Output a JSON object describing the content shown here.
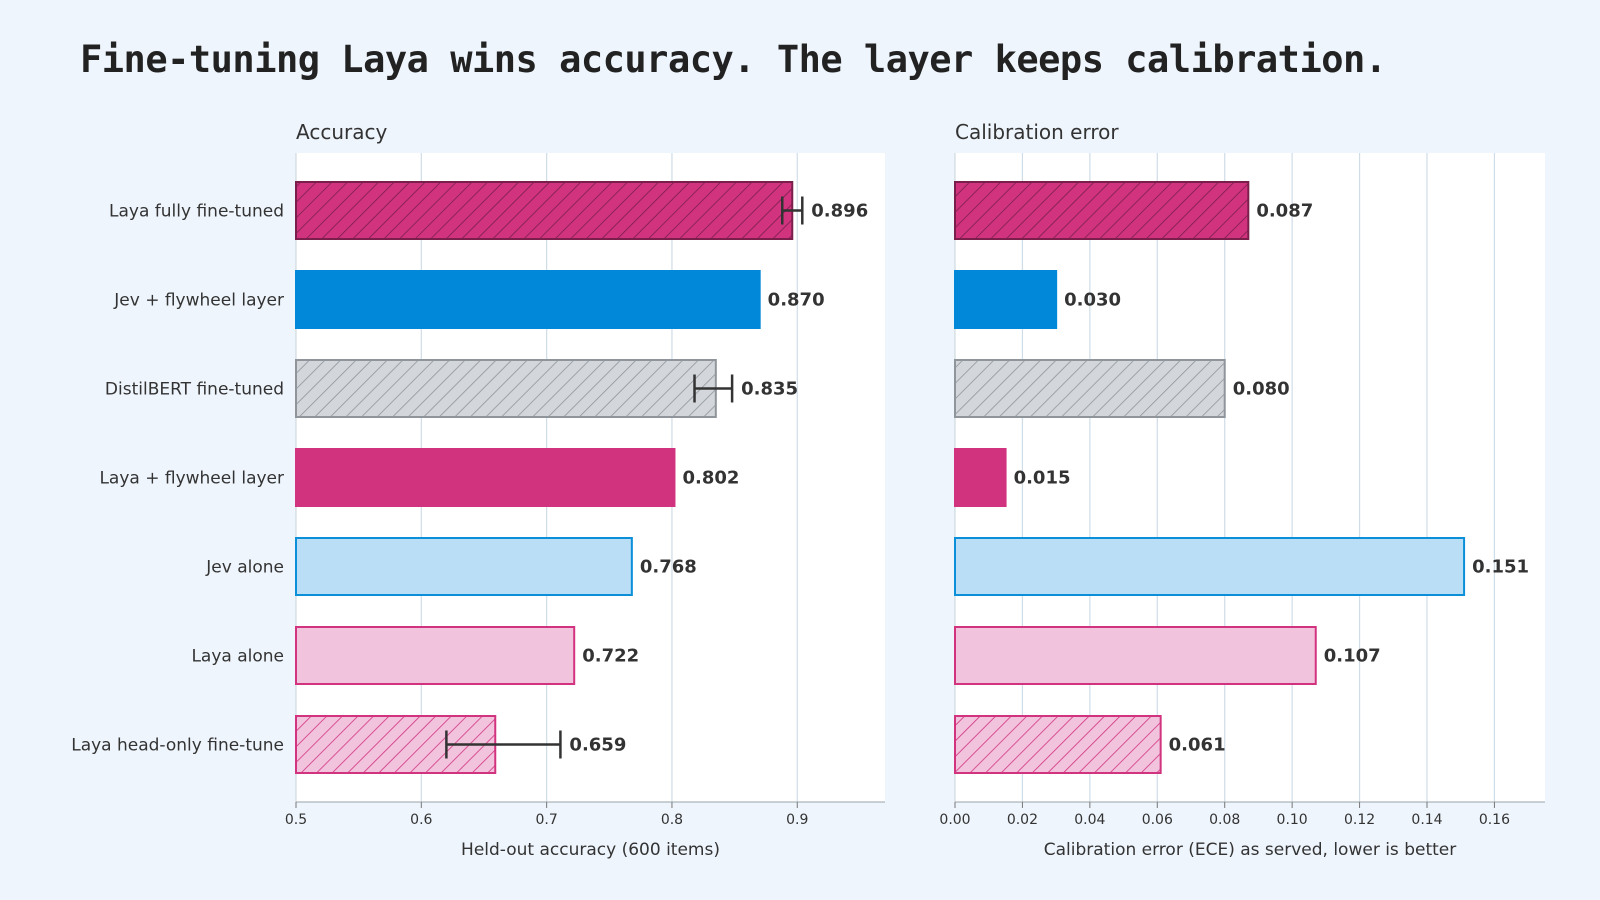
{
  "title": "Fine-tuning Laya wins accuracy. The layer keeps calibration.",
  "categories": [
    "Laya fully fine-tuned",
    "Jev + flywheel layer",
    "DistilBERT fine-tuned",
    "Laya + flywheel layer",
    "Jev alone",
    "Laya alone",
    "Laya head-only fine-tune"
  ],
  "bar_styles": [
    {
      "fill": "#d1337f",
      "stroke": "#7a1f4c",
      "hatch": true,
      "hatch_color": "#7a1f4c"
    },
    {
      "fill": "#0288d8",
      "stroke": "#0288d8",
      "hatch": false
    },
    {
      "fill": "#d3d7db",
      "stroke": "#8f959b",
      "hatch": true,
      "hatch_color": "#8f959b"
    },
    {
      "fill": "#d1337f",
      "stroke": "#d1337f",
      "hatch": false
    },
    {
      "fill": "#b9def6",
      "stroke": "#0a8fd8",
      "hatch": false
    },
    {
      "fill": "#f2c3dd",
      "stroke": "#d1337f",
      "hatch": false
    },
    {
      "fill": "#f2c3dd",
      "stroke": "#d1337f",
      "hatch": true,
      "hatch_color": "#d1337f"
    }
  ],
  "chart_data": [
    {
      "type": "bar",
      "orientation": "horizontal",
      "title": "Accuracy",
      "xlabel": "Held-out accuracy (600 items)",
      "categories": [
        "Laya fully fine-tuned",
        "Jev + flywheel layer",
        "DistilBERT fine-tuned",
        "Laya + flywheel layer",
        "Jev alone",
        "Laya alone",
        "Laya head-only fine-tune"
      ],
      "values": [
        0.896,
        0.87,
        0.835,
        0.802,
        0.768,
        0.722,
        0.659
      ],
      "value_labels": [
        "0.896",
        "0.870",
        "0.835",
        "0.802",
        "0.768",
        "0.722",
        "0.659"
      ],
      "error_bars": [
        [
          0.888,
          0.904
        ],
        null,
        [
          0.818,
          0.848
        ],
        null,
        null,
        null,
        [
          0.62,
          0.711
        ]
      ],
      "xlim": [
        0.5,
        0.97
      ],
      "ticks": [
        0.5,
        0.6,
        0.7,
        0.8,
        0.9
      ],
      "tick_labels": [
        "0.5",
        "0.6",
        "0.7",
        "0.8",
        "0.9"
      ],
      "grid": true
    },
    {
      "type": "bar",
      "orientation": "horizontal",
      "title": "Calibration error",
      "xlabel": "Calibration error (ECE) as served, lower is better",
      "categories": [
        "Laya fully fine-tuned",
        "Jev + flywheel layer",
        "DistilBERT fine-tuned",
        "Laya + flywheel layer",
        "Jev alone",
        "Laya alone",
        "Laya head-only fine-tune"
      ],
      "values": [
        0.087,
        0.03,
        0.08,
        0.015,
        0.151,
        0.107,
        0.061
      ],
      "value_labels": [
        "0.087",
        "0.030",
        "0.080",
        "0.015",
        "0.151",
        "0.107",
        "0.061"
      ],
      "xlim": [
        0.0,
        0.175
      ],
      "ticks": [
        0.0,
        0.02,
        0.04,
        0.06,
        0.08,
        0.1,
        0.12,
        0.14,
        0.16
      ],
      "tick_labels": [
        "0.00",
        "0.02",
        "0.04",
        "0.06",
        "0.08",
        "0.10",
        "0.12",
        "0.14",
        "0.16"
      ],
      "grid": true
    }
  ]
}
